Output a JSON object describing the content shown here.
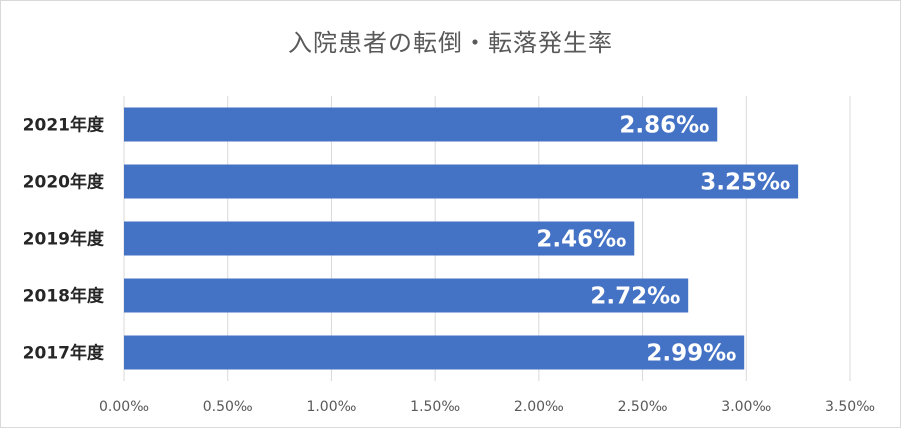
{
  "chart_data": {
    "type": "bar",
    "orientation": "horizontal",
    "title": "入院患者の転倒・転落発生率",
    "categories": [
      "2021年度",
      "2020年度",
      "2019年度",
      "2018年度",
      "2017年度"
    ],
    "values": [
      2.86,
      3.25,
      2.46,
      2.72,
      2.99
    ],
    "value_labels": [
      "2.86‰",
      "3.25‰",
      "2.46‰",
      "2.72‰",
      "2.99‰"
    ],
    "x_ticks": [
      0,
      0.5,
      1.0,
      1.5,
      2.0,
      2.5,
      3.0,
      3.5
    ],
    "x_tick_labels": [
      "0.00‰",
      "0.50‰",
      "1.00‰",
      "1.50‰",
      "2.00‰",
      "2.50‰",
      "3.00‰",
      "3.50‰"
    ],
    "xlim": [
      0,
      3.5
    ],
    "xlabel": "",
    "ylabel": "",
    "grid": "vertical",
    "legend": "none",
    "colors": {
      "bar": "#4472c4",
      "grid": "#d9d9d9",
      "data_label": "#ffffff"
    }
  }
}
